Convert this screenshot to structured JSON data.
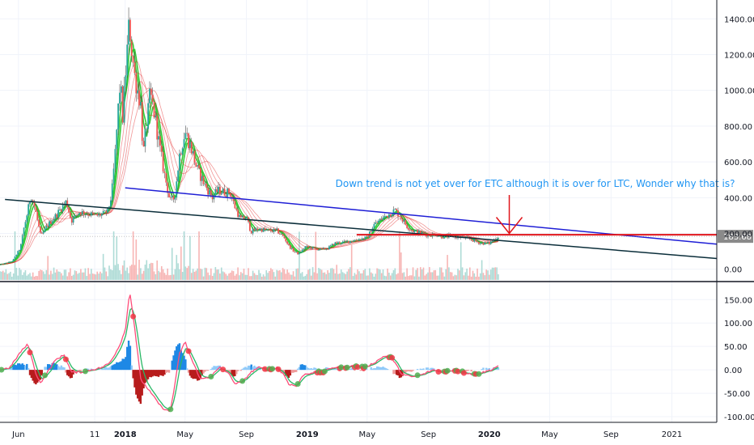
{
  "colors": {
    "annotation": "#2196f3",
    "trend_blue": "#1f1fd6",
    "trend_dark": "#0b2e3a",
    "resistance_red": "#e0151b",
    "arrow_red": "#e0151b",
    "last_price_bg": "#8a8a8a",
    "candle_up": "#26a69a",
    "candle_down": "#ef5350",
    "ribbon_green": "#1fc424",
    "ribbon_red": "#e01818",
    "vol_up": "#9ad2cc",
    "vol_down": "#f5a3a1",
    "osc_fast": "#ff4d7a",
    "osc_slow": "#29b765",
    "dot_red": "#f23645",
    "dot_green": "#4caf50",
    "hist_blue": "#1e88e5",
    "hist_light_blue": "#90caf9",
    "hist_red": "#b71c1c",
    "hist_light_red": "#ef9a9a",
    "grid": "#f0f3fa"
  },
  "chart_data": [
    {
      "type": "candlestick",
      "symbol_note": "",
      "ylim": [
        -60,
        1460
      ],
      "yticks": [
        "1400.00",
        "1200.00",
        "1000.00",
        "800.00",
        "600.00",
        "400.00",
        "200.00",
        "0.00"
      ],
      "ytick_values": [
        1400,
        1200,
        1000,
        800,
        600,
        400,
        200,
        0
      ],
      "last_price_label": "183.68",
      "last_price_value": 183.68,
      "xlim": [
        "2017-04-25",
        "2021-04-01"
      ],
      "xticks": [
        {
          "label": "Jun",
          "date": "2017-06-01",
          "bold": false
        },
        {
          "label": "11",
          "date": "2017-11-01",
          "bold": false
        },
        {
          "label": "2018",
          "date": "2018-01-01",
          "bold": true
        },
        {
          "label": "May",
          "date": "2018-05-01",
          "bold": false
        },
        {
          "label": "Sep",
          "date": "2018-09-01",
          "bold": false
        },
        {
          "label": "2019",
          "date": "2019-01-01",
          "bold": true
        },
        {
          "label": "May",
          "date": "2019-05-01",
          "bold": false
        },
        {
          "label": "Sep",
          "date": "2019-09-01",
          "bold": false
        },
        {
          "label": "2020",
          "date": "2020-01-01",
          "bold": true
        },
        {
          "label": "May",
          "date": "2020-05-01",
          "bold": false
        },
        {
          "label": "Sep",
          "date": "2020-09-01",
          "bold": false
        },
        {
          "label": "2021",
          "date": "2021-01-01",
          "bold": false
        }
      ],
      "price_keypoints": [
        [
          "2017-04-25",
          25
        ],
        [
          "2017-05-20",
          45
        ],
        [
          "2017-06-05",
          120
        ],
        [
          "2017-06-12",
          230
        ],
        [
          "2017-06-20",
          330
        ],
        [
          "2017-06-26",
          420
        ],
        [
          "2017-07-05",
          330
        ],
        [
          "2017-07-16",
          180
        ],
        [
          "2017-07-28",
          240
        ],
        [
          "2017-08-15",
          300
        ],
        [
          "2017-08-28",
          350
        ],
        [
          "2017-09-05",
          380
        ],
        [
          "2017-09-15",
          270
        ],
        [
          "2017-10-01",
          320
        ],
        [
          "2017-10-20",
          310
        ],
        [
          "2017-11-05",
          300
        ],
        [
          "2017-11-20",
          310
        ],
        [
          "2017-11-28",
          330
        ],
        [
          "2017-12-05",
          420
        ],
        [
          "2017-12-12",
          650
        ],
        [
          "2017-12-18",
          900
        ],
        [
          "2017-12-22",
          1050
        ],
        [
          "2017-12-27",
          850
        ],
        [
          "2018-01-03",
          1150
        ],
        [
          "2018-01-09",
          1380
        ],
        [
          "2018-01-14",
          1230
        ],
        [
          "2018-01-20",
          1080
        ],
        [
          "2018-02-01",
          920
        ],
        [
          "2018-02-06",
          640
        ],
        [
          "2018-02-20",
          980
        ],
        [
          "2018-03-01",
          860
        ],
        [
          "2018-03-10",
          700
        ],
        [
          "2018-03-20",
          540
        ],
        [
          "2018-04-01",
          380
        ],
        [
          "2018-04-10",
          400
        ],
        [
          "2018-04-20",
          640
        ],
        [
          "2018-05-01",
          770
        ],
        [
          "2018-05-12",
          690
        ],
        [
          "2018-05-25",
          560
        ],
        [
          "2018-06-10",
          470
        ],
        [
          "2018-06-25",
          400
        ],
        [
          "2018-07-05",
          440
        ],
        [
          "2018-07-20",
          430
        ],
        [
          "2018-07-30",
          430
        ],
        [
          "2018-08-10",
          340
        ],
        [
          "2018-08-20",
          280
        ],
        [
          "2018-09-01",
          290
        ],
        [
          "2018-09-10",
          210
        ],
        [
          "2018-09-25",
          225
        ],
        [
          "2018-10-15",
          215
        ],
        [
          "2018-11-01",
          215
        ],
        [
          "2018-11-15",
          180
        ],
        [
          "2018-11-25",
          130
        ],
        [
          "2018-12-05",
          100
        ],
        [
          "2018-12-15",
          85
        ],
        [
          "2018-12-28",
          125
        ],
        [
          "2019-01-10",
          120
        ],
        [
          "2019-01-25",
          110
        ],
        [
          "2019-02-10",
          115
        ],
        [
          "2019-02-25",
          145
        ],
        [
          "2019-03-15",
          150
        ],
        [
          "2019-04-01",
          160
        ],
        [
          "2019-04-20",
          170
        ],
        [
          "2019-05-01",
          175
        ],
        [
          "2019-05-15",
          250
        ],
        [
          "2019-06-01",
          285
        ],
        [
          "2019-06-15",
          310
        ],
        [
          "2019-06-26",
          330
        ],
        [
          "2019-07-05",
          300
        ],
        [
          "2019-07-20",
          240
        ],
        [
          "2019-08-01",
          215
        ],
        [
          "2019-08-20",
          200
        ],
        [
          "2019-09-01",
          190
        ],
        [
          "2019-09-15",
          195
        ],
        [
          "2019-10-01",
          180
        ],
        [
          "2019-10-15",
          185
        ],
        [
          "2019-11-01",
          180
        ],
        [
          "2019-11-15",
          175
        ],
        [
          "2019-12-01",
          160
        ],
        [
          "2019-12-15",
          145
        ],
        [
          "2020-01-01",
          145
        ],
        [
          "2020-01-10",
          165
        ],
        [
          "2020-01-20",
          183.68
        ]
      ],
      "volume_note": "volume bars along the bottom of the price pane",
      "trendlines": [
        {
          "name": "descending-dark",
          "color_key": "trend_dark",
          "from": [
            "2017-05-05",
            390
          ],
          "to": [
            "2021-04-01",
            60
          ]
        },
        {
          "name": "descending-blue",
          "color_key": "trend_blue",
          "from": [
            "2018-01-01",
            455
          ],
          "to": [
            "2021-04-01",
            140
          ]
        },
        {
          "name": "resistance-red",
          "color_key": "resistance_red",
          "from": [
            "2019-04-10",
            193
          ],
          "to": [
            "2021-04-01",
            193
          ]
        }
      ],
      "annotation": {
        "text": "Down trend is not yet over for ETC although it is over for LTC, Wonder why that is?",
        "date": "2019-06-20",
        "value": 460
      },
      "arrow": {
        "date": "2020-02-10",
        "from_value": 415,
        "to_value": 200
      }
    },
    {
      "type": "oscillator",
      "ylim": [
        -112,
        185
      ],
      "yticks": [
        "150.00",
        "100.00",
        "50.00",
        "0.00",
        "-50.00",
        "-100.00"
      ],
      "ytick_values": [
        150,
        100,
        50,
        0,
        -50,
        -100
      ],
      "keypoints": [
        [
          "2017-04-25",
          0
        ],
        [
          "2017-05-15",
          5
        ],
        [
          "2017-06-05",
          38
        ],
        [
          "2017-06-20",
          55
        ],
        [
          "2017-07-05",
          -5
        ],
        [
          "2017-07-15",
          -28
        ],
        [
          "2017-08-01",
          0
        ],
        [
          "2017-08-15",
          22
        ],
        [
          "2017-09-01",
          32
        ],
        [
          "2017-09-15",
          -5
        ],
        [
          "2017-10-05",
          -5
        ],
        [
          "2017-10-25",
          0
        ],
        [
          "2017-11-15",
          5
        ],
        [
          "2017-12-01",
          15
        ],
        [
          "2017-12-12",
          35
        ],
        [
          "2017-12-22",
          55
        ],
        [
          "2018-01-02",
          90
        ],
        [
          "2018-01-10",
          170
        ],
        [
          "2018-01-20",
          90
        ],
        [
          "2018-02-01",
          -20
        ],
        [
          "2018-02-15",
          -40
        ],
        [
          "2018-03-01",
          -60
        ],
        [
          "2018-03-15",
          -80
        ],
        [
          "2018-04-01",
          -90
        ],
        [
          "2018-04-10",
          -35
        ],
        [
          "2018-04-20",
          35
        ],
        [
          "2018-05-01",
          60
        ],
        [
          "2018-05-15",
          20
        ],
        [
          "2018-06-01",
          -20
        ],
        [
          "2018-06-20",
          -15
        ],
        [
          "2018-07-10",
          5
        ],
        [
          "2018-07-25",
          -5
        ],
        [
          "2018-08-10",
          -30
        ],
        [
          "2018-08-25",
          -25
        ],
        [
          "2018-09-10",
          -5
        ],
        [
          "2018-09-25",
          5
        ],
        [
          "2018-10-15",
          0
        ],
        [
          "2018-11-01",
          5
        ],
        [
          "2018-11-15",
          -10
        ],
        [
          "2018-11-25",
          -30
        ],
        [
          "2018-12-10",
          -35
        ],
        [
          "2018-12-25",
          -10
        ],
        [
          "2019-01-15",
          -5
        ],
        [
          "2019-02-01",
          -5
        ],
        [
          "2019-02-20",
          5
        ],
        [
          "2019-03-15",
          5
        ],
        [
          "2019-04-01",
          8
        ],
        [
          "2019-04-25",
          5
        ],
        [
          "2019-05-15",
          15
        ],
        [
          "2019-06-05",
          30
        ],
        [
          "2019-06-20",
          25
        ],
        [
          "2019-07-10",
          -10
        ],
        [
          "2019-08-01",
          -15
        ],
        [
          "2019-08-20",
          -10
        ],
        [
          "2019-09-10",
          0
        ],
        [
          "2019-10-01",
          -5
        ],
        [
          "2019-10-20",
          0
        ],
        [
          "2019-11-10",
          -5
        ],
        [
          "2019-12-01",
          -10
        ],
        [
          "2019-12-20",
          -5
        ],
        [
          "2020-01-05",
          0
        ],
        [
          "2020-01-20",
          10
        ]
      ]
    }
  ]
}
